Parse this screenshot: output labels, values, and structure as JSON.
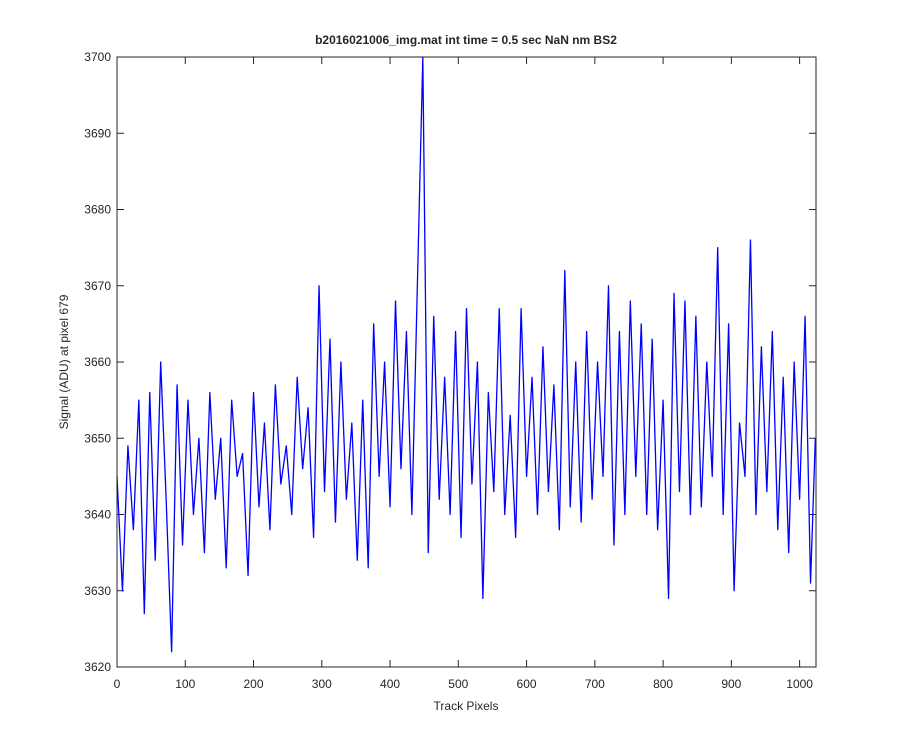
{
  "chart_data": {
    "type": "line",
    "title": "b2016021006_img.mat int time = 0.5 sec  NaN nm BS2",
    "x_label": "Track Pixels",
    "y_label": "Signal (ADU) at pixel 679",
    "x": [
      0,
      8,
      16,
      24,
      32,
      40,
      48,
      56,
      64,
      72,
      80,
      88,
      96,
      104,
      112,
      120,
      128,
      136,
      144,
      152,
      160,
      168,
      176,
      184,
      192,
      200,
      208,
      216,
      224,
      232,
      240,
      248,
      256,
      264,
      272,
      280,
      288,
      296,
      304,
      312,
      320,
      328,
      336,
      344,
      352,
      360,
      368,
      376,
      384,
      392,
      400,
      408,
      416,
      424,
      432,
      440,
      448,
      456,
      464,
      472,
      480,
      488,
      496,
      504,
      512,
      520,
      528,
      536,
      544,
      552,
      560,
      568,
      576,
      584,
      592,
      600,
      608,
      616,
      624,
      632,
      640,
      648,
      656,
      664,
      672,
      680,
      688,
      696,
      704,
      712,
      720,
      728,
      736,
      744,
      752,
      760,
      768,
      776,
      784,
      792,
      800,
      808,
      816,
      824,
      832,
      840,
      848,
      856,
      864,
      872,
      880,
      888,
      896,
      904,
      912,
      920,
      928,
      936,
      944,
      952,
      960,
      968,
      976,
      984,
      992,
      1000,
      1008,
      1016,
      1023
    ],
    "series": [
      {
        "name": "Signal",
        "color": "#0000ff",
        "values": [
          3645,
          3630,
          3649,
          3638,
          3655,
          3627,
          3656,
          3634,
          3660,
          3642,
          3622,
          3657,
          3636,
          3655,
          3640,
          3650,
          3635,
          3656,
          3642,
          3650,
          3633,
          3655,
          3645,
          3648,
          3632,
          3656,
          3641,
          3652,
          3638,
          3657,
          3644,
          3649,
          3640,
          3658,
          3646,
          3654,
          3637,
          3670,
          3643,
          3663,
          3639,
          3660,
          3642,
          3652,
          3634,
          3655,
          3633,
          3665,
          3645,
          3660,
          3641,
          3668,
          3646,
          3664,
          3640,
          3670,
          3700,
          3635,
          3666,
          3642,
          3658,
          3640,
          3664,
          3637,
          3667,
          3644,
          3660,
          3629,
          3656,
          3643,
          3667,
          3640,
          3653,
          3637,
          3667,
          3645,
          3658,
          3640,
          3662,
          3643,
          3657,
          3638,
          3672,
          3641,
          3660,
          3639,
          3664,
          3642,
          3660,
          3645,
          3670,
          3636,
          3664,
          3640,
          3668,
          3645,
          3665,
          3640,
          3663,
          3638,
          3655,
          3629,
          3669,
          3643,
          3668,
          3640,
          3666,
          3641,
          3660,
          3645,
          3675,
          3640,
          3665,
          3630,
          3652,
          3645,
          3676,
          3640,
          3662,
          3643,
          3664,
          3638,
          3658,
          3635,
          3660,
          3642,
          3666,
          3631,
          3650
        ]
      }
    ],
    "xlim": [
      0,
      1024
    ],
    "ylim": [
      3620,
      3700
    ],
    "xticks": [
      0,
      100,
      200,
      300,
      400,
      500,
      600,
      700,
      800,
      900,
      1000
    ],
    "yticks": [
      3620,
      3630,
      3640,
      3650,
      3660,
      3670,
      3680,
      3690,
      3700
    ],
    "grid": false
  }
}
